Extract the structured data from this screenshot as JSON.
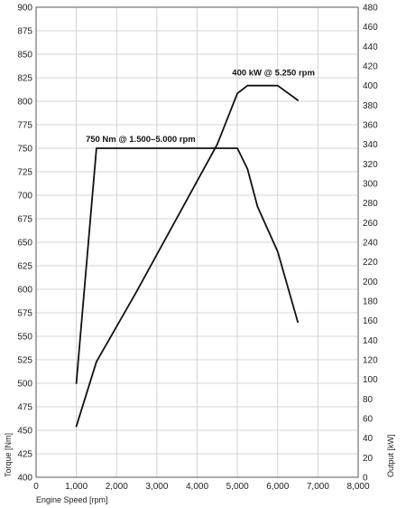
{
  "chart_data": {
    "type": "line",
    "title": "",
    "xlabel": "Engine Speed [rpm]",
    "ylabel_left": "Torque [Nm]",
    "ylabel_right": "Output [kW]",
    "xlim": [
      0,
      8000
    ],
    "ylim_left": [
      400,
      900
    ],
    "ylim_right": [
      0,
      480
    ],
    "x_ticks": [
      "0",
      "1,000",
      "2,000",
      "3,000",
      "4,000",
      "5,000",
      "6,000",
      "7,000",
      "8,000"
    ],
    "y_ticks_left": [
      "400",
      "425",
      "450",
      "475",
      "500",
      "525",
      "550",
      "575",
      "600",
      "625",
      "650",
      "675",
      "700",
      "725",
      "750",
      "775",
      "800",
      "825",
      "850",
      "875",
      "900"
    ],
    "y_ticks_right": [
      "0",
      "20",
      "40",
      "60",
      "80",
      "100",
      "120",
      "140",
      "160",
      "180",
      "200",
      "220",
      "240",
      "260",
      "280",
      "300",
      "320",
      "340",
      "360",
      "380",
      "400",
      "420",
      "440",
      "460",
      "480"
    ],
    "grid": true,
    "series": [
      {
        "name": "Torque",
        "axis": "left",
        "color": "#111111",
        "x": [
          1000,
          1500,
          5000,
          5250,
          5500,
          6000,
          6500
        ],
        "y": [
          500,
          750,
          750,
          728,
          688,
          640,
          565
        ]
      },
      {
        "name": "Output",
        "axis": "right",
        "color": "#111111",
        "x": [
          1000,
          1500,
          2500,
          3500,
          4500,
          5000,
          5250,
          6000,
          6500
        ],
        "y": [
          52,
          118,
          190,
          265,
          340,
          392,
          400,
          400,
          385
        ]
      }
    ],
    "annotations": [
      {
        "text": "750 Nm @ 1.500–5.000 rpm",
        "x": 1500,
        "y": 750,
        "axis": "left"
      },
      {
        "text": "400 kW @ 5.250 rpm",
        "x": 5250,
        "y": 400,
        "axis": "right"
      }
    ]
  }
}
